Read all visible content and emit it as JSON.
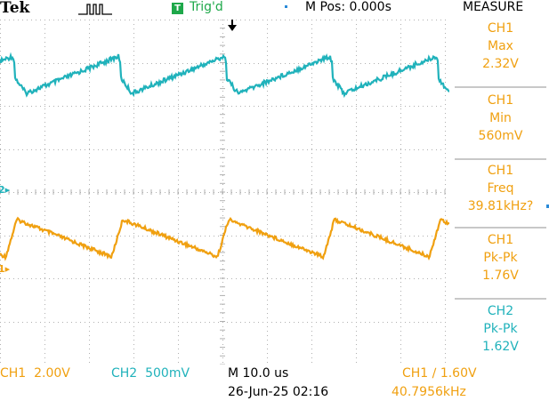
{
  "header": {
    "brand": "Tek",
    "acquire_icon": "acquire-pulse-icon",
    "trig_badge": "T",
    "trig_status": "Trig'd",
    "mpos": "M Pos: 0.000s",
    "menu_title": "MEASURE"
  },
  "measurements": [
    {
      "channel": "CH1",
      "type": "Max",
      "value": "2.32V"
    },
    {
      "channel": "CH1",
      "type": "Min",
      "value": "560mV"
    },
    {
      "channel": "CH1",
      "type": "Freq",
      "value": "39.81kHz?"
    },
    {
      "channel": "CH1",
      "type": "Pk-Pk",
      "value": "1.76V"
    },
    {
      "channel": "CH2",
      "type": "Pk-Pk",
      "value": "1.62V"
    }
  ],
  "footer": {
    "ch1_scale": "CH1  2.00V",
    "ch2_scale": "CH2  500mV",
    "timebase": "M 10.0 us",
    "datetime": "26-Jun-25 02:16",
    "trigger": "CH1 ∕ 1.60V",
    "trig_freq": "40.7956kHz"
  },
  "channel_markers": {
    "ch2": "2▸",
    "ch1": "1▸"
  },
  "colors": {
    "ch1": "#f0a010",
    "ch2": "#20b2bb",
    "trig": "#1ea84a"
  }
}
